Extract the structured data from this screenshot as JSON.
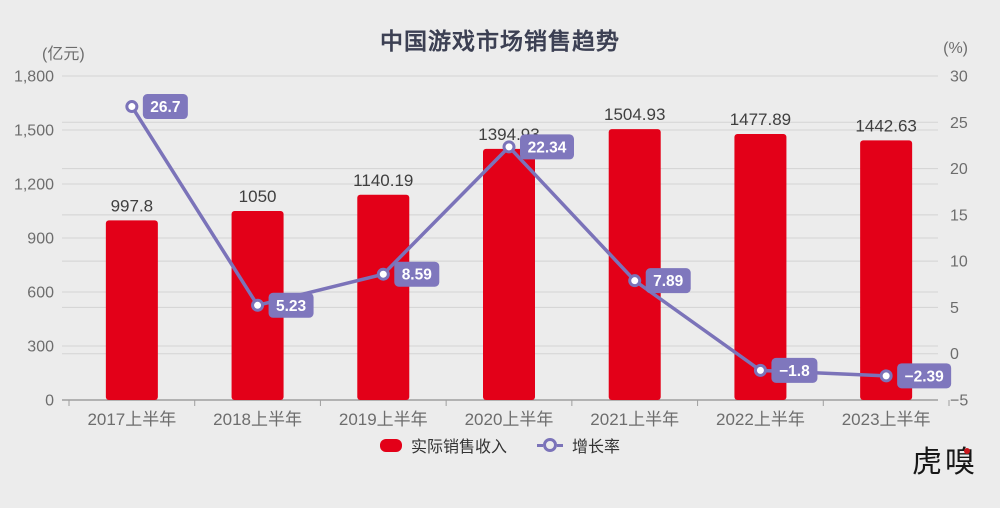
{
  "header": {
    "title": "中国游戏市场销售趋势",
    "left_unit": "(亿元)",
    "right_unit": "(%)"
  },
  "legend": {
    "items": [
      {
        "label": "实际销售收入",
        "marker": "red-rounded-bar-swatch"
      },
      {
        "label": "增长率",
        "marker": "purple-line-ring-marker"
      }
    ]
  },
  "watermark": {
    "text": "虎嗅"
  },
  "colors": {
    "background": "#ececec",
    "bar": "#e30018",
    "line": "#7b73b9",
    "badge": "#7f77bd",
    "grid": "#d3d3d3",
    "axis": "#9e9e9e",
    "tick_text": "#6d6d6d",
    "title_text": "#3c4053",
    "value_text": "#3f3f3f",
    "legend_text": "#333333",
    "logo_text": "#171717",
    "logo_accent": "#c9161d"
  },
  "chart_data": {
    "type": "bar",
    "subtype": "bar-line-combo",
    "title": "中国游戏市场销售趋势",
    "categories": [
      "2017上半年",
      "2018上半年",
      "2019上半年",
      "2020上半年",
      "2021上半年",
      "2022上半年",
      "2023上半年"
    ],
    "series": [
      {
        "name": "实际销售收入",
        "type": "bar",
        "axis": "left",
        "unit": "亿元",
        "values": [
          997.8,
          1050,
          1140.19,
          1394.93,
          1504.93,
          1477.89,
          1442.63
        ],
        "labels": [
          "997.8",
          "1050",
          "1140.19",
          "1394.93",
          "1504.93",
          "1477.89",
          "1442.63"
        ]
      },
      {
        "name": "增长率",
        "type": "line",
        "axis": "right",
        "unit": "%",
        "values": [
          26.7,
          5.23,
          8.59,
          22.34,
          7.89,
          -1.8,
          -2.39
        ],
        "labels": [
          "26.7",
          "5.23",
          "8.59",
          "22.34",
          "7.89",
          "−1.8",
          "−2.39"
        ]
      }
    ],
    "left_axis": {
      "label": "(亿元)",
      "min": 0,
      "max": 1800,
      "step": 300,
      "ticks": [
        "0",
        "300",
        "600",
        "900",
        "1,200",
        "1,500",
        "1,800"
      ]
    },
    "right_axis": {
      "label": "(%)",
      "min": -5,
      "max": 30,
      "step": 5,
      "ticks": [
        "−5",
        "0",
        "5",
        "10",
        "15",
        "20",
        "25",
        "30"
      ]
    },
    "grid": true,
    "legend_position": "bottom"
  }
}
